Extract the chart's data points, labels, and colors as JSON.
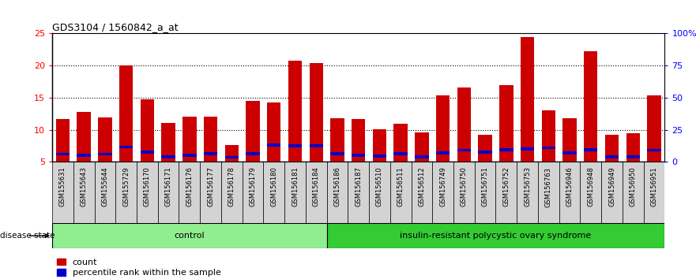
{
  "title": "GDS3104 / 1560842_a_at",
  "samples": [
    "GSM155631",
    "GSM155643",
    "GSM155644",
    "GSM155729",
    "GSM156170",
    "GSM156171",
    "GSM156176",
    "GSM156177",
    "GSM156178",
    "GSM156179",
    "GSM156180",
    "GSM156181",
    "GSM156184",
    "GSM156186",
    "GSM156187",
    "GSM156510",
    "GSM156511",
    "GSM156512",
    "GSM156749",
    "GSM156750",
    "GSM156751",
    "GSM156752",
    "GSM156753",
    "GSM156763",
    "GSM156946",
    "GSM156948",
    "GSM156949",
    "GSM156950",
    "GSM156951"
  ],
  "counts": [
    11.7,
    12.8,
    11.9,
    20.0,
    14.7,
    11.0,
    12.0,
    12.1,
    7.6,
    14.5,
    14.3,
    20.7,
    20.4,
    11.8,
    11.7,
    10.1,
    10.9,
    9.6,
    15.4,
    16.6,
    9.2,
    17.0,
    24.5,
    13.0,
    11.8,
    22.2,
    9.2,
    9.5,
    15.3
  ],
  "percentile_ranks": [
    6.2,
    6.0,
    6.2,
    7.3,
    6.5,
    5.8,
    6.0,
    6.3,
    5.7,
    6.3,
    7.6,
    7.5,
    7.5,
    6.3,
    6.0,
    5.9,
    6.3,
    5.8,
    6.4,
    6.8,
    6.5,
    6.9,
    7.0,
    7.2,
    6.4,
    6.9,
    5.8,
    5.8,
    6.8
  ],
  "control_count": 13,
  "groups": [
    "control",
    "insulin-resistant polycystic ovary syndrome"
  ],
  "group_color_light": "#90EE90",
  "group_color_dark": "#33CC33",
  "bar_color_red": "#CC0000",
  "bar_color_blue": "#0000CC",
  "ylim_left": [
    5,
    25
  ],
  "ylim_right": [
    0,
    100
  ],
  "yticks_left": [
    5,
    10,
    15,
    20,
    25
  ],
  "ytick_labels_left": [
    "5",
    "10",
    "15",
    "20",
    "25"
  ],
  "yticks_right": [
    0,
    25,
    50,
    75,
    100
  ],
  "ytick_labels_right": [
    "0",
    "25",
    "50",
    "75",
    "100%"
  ],
  "plot_bg": "#FFFFFF",
  "tick_area_bg": "#D3D3D3",
  "legend_count_label": "count",
  "legend_pct_label": "percentile rank within the sample",
  "disease_state_label": "disease state"
}
